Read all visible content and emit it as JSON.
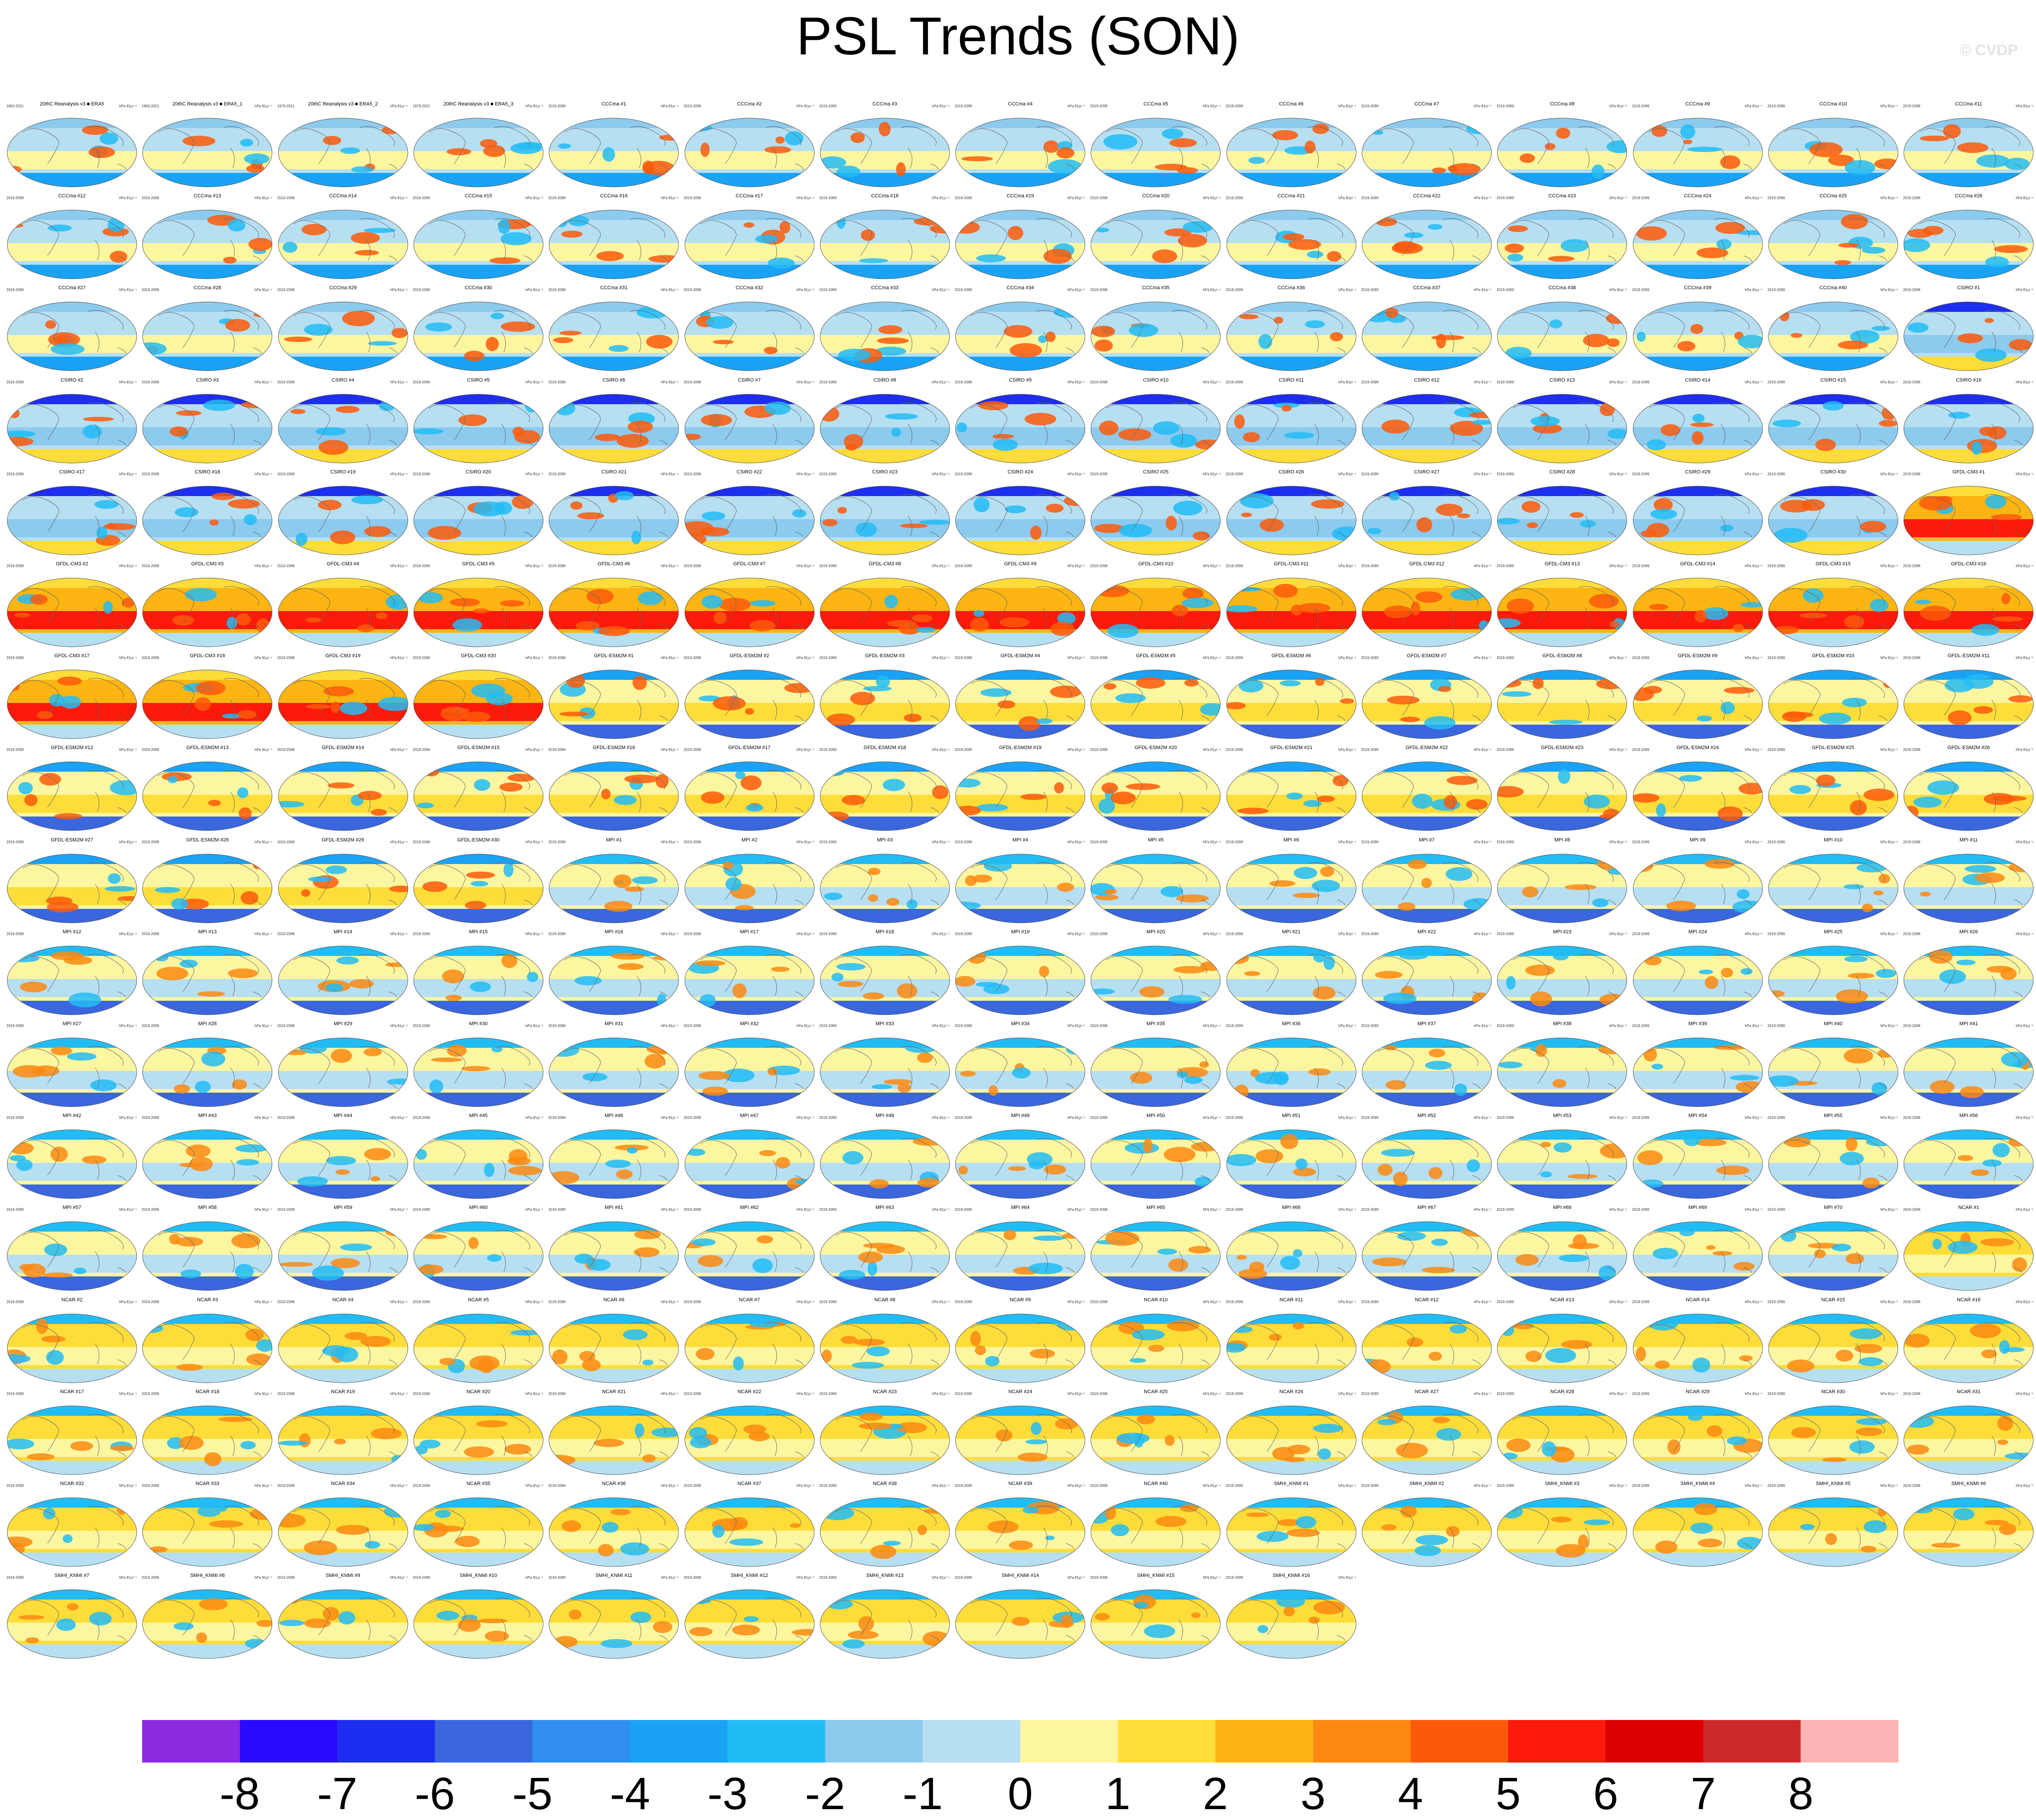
{
  "title": "PSL Trends (SON)",
  "credit": "© CVDP",
  "chart_data": {
    "type": "heatmap",
    "title": "PSL Trends (SON)",
    "panel_units": "hPa 81yr⁻¹",
    "panels": [
      {
        "name": "20thC Reanalysis v3 ■ ERA5",
        "years": "1850-2021"
      },
      {
        "name": "20thC Reanalysis v3 ■ ERA5_1",
        "years": "1850-2021"
      },
      {
        "name": "20thC Reanalysis v3 ■ ERA5_2",
        "years": "1979-2021"
      },
      {
        "name": "20thC Reanalysis v3 ■ ERA5_3",
        "years": "1979-2021"
      },
      {
        "name": "CCCma #1",
        "years": "2019-2099"
      },
      {
        "name": "CCCma #2",
        "years": "2019-2099"
      },
      {
        "name": "CCCma #3",
        "years": "2019-2099"
      },
      {
        "name": "CCCma #4",
        "years": "2019-2099"
      },
      {
        "name": "CCCma #5",
        "years": "2019-2099"
      },
      {
        "name": "CCCma #6",
        "years": "2019-2099"
      },
      {
        "name": "CCCma #7",
        "years": "2019-2099"
      },
      {
        "name": "CCCma #8",
        "years": "2019-2099"
      },
      {
        "name": "CCCma #9",
        "years": "2019-2099"
      },
      {
        "name": "CCCma #10",
        "years": "2019-2099"
      },
      {
        "name": "CCCma #11",
        "years": "2019-2099"
      },
      {
        "name": "CCCma #12",
        "years": "2019-2099"
      },
      {
        "name": "CCCma #13",
        "years": "2019-2099"
      },
      {
        "name": "CCCma #14",
        "years": "2019-2099"
      },
      {
        "name": "CCCma #15",
        "years": "2019-2099"
      },
      {
        "name": "CCCma #16",
        "years": "2019-2099"
      },
      {
        "name": "CCCma #17",
        "years": "2019-2099"
      },
      {
        "name": "CCCma #18",
        "years": "2019-2099"
      },
      {
        "name": "CCCma #19",
        "years": "2019-2099"
      },
      {
        "name": "CCCma #20",
        "years": "2019-2099"
      },
      {
        "name": "CCCma #21",
        "years": "2019-2099"
      },
      {
        "name": "CCCma #22",
        "years": "2019-2099"
      },
      {
        "name": "CCCma #23",
        "years": "2019-2099"
      },
      {
        "name": "CCCma #24",
        "years": "2019-2099"
      },
      {
        "name": "CCCma #25",
        "years": "2019-2099"
      },
      {
        "name": "CCCma #26",
        "years": "2019-2099"
      },
      {
        "name": "CCCma #27",
        "years": "2019-2099"
      },
      {
        "name": "CCCma #28",
        "years": "2019-2099"
      },
      {
        "name": "CCCma #29",
        "years": "2019-2099"
      },
      {
        "name": "CCCma #30",
        "years": "2019-2099"
      },
      {
        "name": "CCCma #31",
        "years": "2019-2099"
      },
      {
        "name": "CCCma #32",
        "years": "2019-2099"
      },
      {
        "name": "CCCma #33",
        "years": "2019-2099"
      },
      {
        "name": "CCCma #34",
        "years": "2019-2099"
      },
      {
        "name": "CCCma #35",
        "years": "2019-2099"
      },
      {
        "name": "CCCma #36",
        "years": "2019-2099"
      },
      {
        "name": "CCCma #37",
        "years": "2019-2099"
      },
      {
        "name": "CCCma #38",
        "years": "2019-2099"
      },
      {
        "name": "CCCma #39",
        "years": "2019-2099"
      },
      {
        "name": "CCCma #40",
        "years": "2019-2099"
      },
      {
        "name": "CSIRO #1",
        "years": "2019-2099"
      },
      {
        "name": "CSIRO #2",
        "years": "2019-2099"
      },
      {
        "name": "CSIRO #3",
        "years": "2019-2099"
      },
      {
        "name": "CSIRO #4",
        "years": "2019-2099"
      },
      {
        "name": "CSIRO #5",
        "years": "2019-2099"
      },
      {
        "name": "CSIRO #6",
        "years": "2019-2099"
      },
      {
        "name": "CSIRO #7",
        "years": "2019-2099"
      },
      {
        "name": "CSIRO #8",
        "years": "2019-2099"
      },
      {
        "name": "CSIRO #9",
        "years": "2019-2099"
      },
      {
        "name": "CSIRO #10",
        "years": "2019-2099"
      },
      {
        "name": "CSIRO #11",
        "years": "2019-2099"
      },
      {
        "name": "CSIRO #12",
        "years": "2019-2099"
      },
      {
        "name": "CSIRO #13",
        "years": "2019-2099"
      },
      {
        "name": "CSIRO #14",
        "years": "2019-2099"
      },
      {
        "name": "CSIRO #15",
        "years": "2019-2099"
      },
      {
        "name": "CSIRO #16",
        "years": "2019-2099"
      },
      {
        "name": "CSIRO #17",
        "years": "2019-2099"
      },
      {
        "name": "CSIRO #18",
        "years": "2019-2099"
      },
      {
        "name": "CSIRO #19",
        "years": "2019-2099"
      },
      {
        "name": "CSIRO #20",
        "years": "2019-2099"
      },
      {
        "name": "CSIRO #21",
        "years": "2019-2099"
      },
      {
        "name": "CSIRO #22",
        "years": "2019-2099"
      },
      {
        "name": "CSIRO #23",
        "years": "2019-2099"
      },
      {
        "name": "CSIRO #24",
        "years": "2019-2099"
      },
      {
        "name": "CSIRO #25",
        "years": "2019-2099"
      },
      {
        "name": "CSIRO #26",
        "years": "2019-2099"
      },
      {
        "name": "CSIRO #27",
        "years": "2019-2099"
      },
      {
        "name": "CSIRO #28",
        "years": "2019-2099"
      },
      {
        "name": "CSIRO #29",
        "years": "2019-2099"
      },
      {
        "name": "CSIRO #30",
        "years": "2019-2099"
      },
      {
        "name": "GFDL-CM3 #1",
        "years": "2019-2099"
      },
      {
        "name": "GFDL-CM3 #2",
        "years": "2019-2099"
      },
      {
        "name": "GFDL-CM3 #3",
        "years": "2019-2099"
      },
      {
        "name": "GFDL-CM3 #4",
        "years": "2019-2099"
      },
      {
        "name": "GFDL-CM3 #5",
        "years": "2019-2099"
      },
      {
        "name": "GFDL-CM3 #6",
        "years": "2019-2099"
      },
      {
        "name": "GFDL-CM3 #7",
        "years": "2019-2099"
      },
      {
        "name": "GFDL-CM3 #8",
        "years": "2019-2099"
      },
      {
        "name": "GFDL-CM3 #9",
        "years": "2019-2099"
      },
      {
        "name": "GFDL-CM3 #10",
        "years": "2019-2099"
      },
      {
        "name": "GFDL-CM3 #11",
        "years": "2019-2099"
      },
      {
        "name": "GFDL-CM3 #12",
        "years": "2019-2099"
      },
      {
        "name": "GFDL-CM3 #13",
        "years": "2019-2099"
      },
      {
        "name": "GFDL-CM3 #14",
        "years": "2019-2099"
      },
      {
        "name": "GFDL-CM3 #15",
        "years": "2019-2099"
      },
      {
        "name": "GFDL-CM3 #16",
        "years": "2019-2099"
      },
      {
        "name": "GFDL-CM3 #17",
        "years": "2019-2099"
      },
      {
        "name": "GFDL-CM3 #18",
        "years": "2019-2099"
      },
      {
        "name": "GFDL-CM3 #19",
        "years": "2019-2099"
      },
      {
        "name": "GFDL-CM3 #20",
        "years": "2019-2099"
      },
      {
        "name": "GFDL-ESM2M #1",
        "years": "2019-2099"
      },
      {
        "name": "GFDL-ESM2M #2",
        "years": "2019-2099"
      },
      {
        "name": "GFDL-ESM2M #3",
        "years": "2019-2099"
      },
      {
        "name": "GFDL-ESM2M #4",
        "years": "2019-2099"
      },
      {
        "name": "GFDL-ESM2M #5",
        "years": "2019-2099"
      },
      {
        "name": "GFDL-ESM2M #6",
        "years": "2019-2099"
      },
      {
        "name": "GFDL-ESM2M #7",
        "years": "2019-2099"
      },
      {
        "name": "GFDL-ESM2M #8",
        "years": "2019-2099"
      },
      {
        "name": "GFDL-ESM2M #9",
        "years": "2019-2099"
      },
      {
        "name": "GFDL-ESM2M #10",
        "years": "2019-2099"
      },
      {
        "name": "GFDL-ESM2M #11",
        "years": "2019-2099"
      },
      {
        "name": "GFDL-ESM2M #12",
        "years": "2019-2099"
      },
      {
        "name": "GFDL-ESM2M #13",
        "years": "2019-2099"
      },
      {
        "name": "GFDL-ESM2M #14",
        "years": "2019-2099"
      },
      {
        "name": "GFDL-ESM2M #15",
        "years": "2019-2099"
      },
      {
        "name": "GFDL-ESM2M #16",
        "years": "2019-2099"
      },
      {
        "name": "GFDL-ESM2M #17",
        "years": "2019-2099"
      },
      {
        "name": "GFDL-ESM2M #18",
        "years": "2019-2099"
      },
      {
        "name": "GFDL-ESM2M #19",
        "years": "2019-2099"
      },
      {
        "name": "GFDL-ESM2M #20",
        "years": "2019-2099"
      },
      {
        "name": "GFDL-ESM2M #21",
        "years": "2019-2099"
      },
      {
        "name": "GFDL-ESM2M #22",
        "years": "2019-2099"
      },
      {
        "name": "GFDL-ESM2M #23",
        "years": "2019-2099"
      },
      {
        "name": "GFDL-ESM2M #24",
        "years": "2019-2099"
      },
      {
        "name": "GFDL-ESM2M #25",
        "years": "2019-2099"
      },
      {
        "name": "GFDL-ESM2M #26",
        "years": "2019-2099"
      },
      {
        "name": "GFDL-ESM2M #27",
        "years": "2019-2099"
      },
      {
        "name": "GFDL-ESM2M #28",
        "years": "2019-2099"
      },
      {
        "name": "GFDL-ESM2M #29",
        "years": "2019-2099"
      },
      {
        "name": "GFDL-ESM2M #30",
        "years": "2019-2099"
      },
      {
        "name": "MPI #1",
        "years": "2019-2099"
      },
      {
        "name": "MPI #2",
        "years": "2019-2099"
      },
      {
        "name": "MPI #3",
        "years": "2019-2099"
      },
      {
        "name": "MPI #4",
        "years": "2019-2099"
      },
      {
        "name": "MPI #5",
        "years": "2019-2099"
      },
      {
        "name": "MPI #6",
        "years": "2019-2099"
      },
      {
        "name": "MPI #7",
        "years": "2019-2099"
      },
      {
        "name": "MPI #8",
        "years": "2019-2099"
      },
      {
        "name": "MPI #9",
        "years": "2019-2099"
      },
      {
        "name": "MPI #10",
        "years": "2019-2099"
      },
      {
        "name": "MPI #11",
        "years": "2019-2099"
      },
      {
        "name": "MPI #12",
        "years": "2019-2099"
      },
      {
        "name": "MPI #13",
        "years": "2019-2099"
      },
      {
        "name": "MPI #14",
        "years": "2019-2099"
      },
      {
        "name": "MPI #15",
        "years": "2019-2099"
      },
      {
        "name": "MPI #16",
        "years": "2019-2099"
      },
      {
        "name": "MPI #17",
        "years": "2019-2099"
      },
      {
        "name": "MPI #18",
        "years": "2019-2099"
      },
      {
        "name": "MPI #19",
        "years": "2019-2099"
      },
      {
        "name": "MPI #20",
        "years": "2019-2099"
      },
      {
        "name": "MPI #21",
        "years": "2019-2099"
      },
      {
        "name": "MPI #22",
        "years": "2019-2099"
      },
      {
        "name": "MPI #23",
        "years": "2019-2099"
      },
      {
        "name": "MPI #24",
        "years": "2019-2099"
      },
      {
        "name": "MPI #25",
        "years": "2019-2099"
      },
      {
        "name": "MPI #26",
        "years": "2019-2099"
      },
      {
        "name": "MPI #27",
        "years": "2019-2099"
      },
      {
        "name": "MPI #28",
        "years": "2019-2099"
      },
      {
        "name": "MPI #29",
        "years": "2019-2099"
      },
      {
        "name": "MPI #30",
        "years": "2019-2099"
      },
      {
        "name": "MPI #31",
        "years": "2019-2099"
      },
      {
        "name": "MPI #32",
        "years": "2019-2099"
      },
      {
        "name": "MPI #33",
        "years": "2019-2099"
      },
      {
        "name": "MPI #34",
        "years": "2019-2099"
      },
      {
        "name": "MPI #35",
        "years": "2019-2099"
      },
      {
        "name": "MPI #36",
        "years": "2019-2099"
      },
      {
        "name": "MPI #37",
        "years": "2019-2099"
      },
      {
        "name": "MPI #38",
        "years": "2019-2099"
      },
      {
        "name": "MPI #39",
        "years": "2019-2099"
      },
      {
        "name": "MPI #40",
        "years": "2019-2099"
      },
      {
        "name": "MPI #41",
        "years": "2019-2099"
      },
      {
        "name": "MPI #42",
        "years": "2019-2099"
      },
      {
        "name": "MPI #43",
        "years": "2019-2099"
      },
      {
        "name": "MPI #44",
        "years": "2019-2099"
      },
      {
        "name": "MPI #45",
        "years": "2019-2099"
      },
      {
        "name": "MPI #46",
        "years": "2019-2099"
      },
      {
        "name": "MPI #47",
        "years": "2019-2099"
      },
      {
        "name": "MPI #48",
        "years": "2019-2099"
      },
      {
        "name": "MPI #49",
        "years": "2019-2099"
      },
      {
        "name": "MPI #50",
        "years": "2019-2099"
      },
      {
        "name": "MPI #51",
        "years": "2019-2099"
      },
      {
        "name": "MPI #52",
        "years": "2019-2099"
      },
      {
        "name": "MPI #53",
        "years": "2019-2099"
      },
      {
        "name": "MPI #54",
        "years": "2019-2099"
      },
      {
        "name": "MPI #55",
        "years": "2019-2099"
      },
      {
        "name": "MPI #56",
        "years": "2019-2099"
      },
      {
        "name": "MPI #57",
        "years": "2019-2099"
      },
      {
        "name": "MPI #58",
        "years": "2019-2099"
      },
      {
        "name": "MPI #59",
        "years": "2019-2099"
      },
      {
        "name": "MPI #60",
        "years": "2019-2099"
      },
      {
        "name": "MPI #61",
        "years": "2019-2099"
      },
      {
        "name": "MPI #62",
        "years": "2019-2099"
      },
      {
        "name": "MPI #63",
        "years": "2019-2099"
      },
      {
        "name": "MPI #64",
        "years": "2019-2099"
      },
      {
        "name": "MPI #65",
        "years": "2019-2099"
      },
      {
        "name": "MPI #66",
        "years": "2019-2099"
      },
      {
        "name": "MPI #67",
        "years": "2019-2099"
      },
      {
        "name": "MPI #68",
        "years": "2019-2099"
      },
      {
        "name": "MPI #69",
        "years": "2019-2099"
      },
      {
        "name": "MPI #70",
        "years": "2019-2099"
      },
      {
        "name": "NCAR #1",
        "years": "2019-2099"
      },
      {
        "name": "NCAR #2",
        "years": "2019-2099"
      },
      {
        "name": "NCAR #3",
        "years": "2019-2099"
      },
      {
        "name": "NCAR #4",
        "years": "2019-2099"
      },
      {
        "name": "NCAR #5",
        "years": "2019-2099"
      },
      {
        "name": "NCAR #6",
        "years": "2019-2099"
      },
      {
        "name": "NCAR #7",
        "years": "2019-2099"
      },
      {
        "name": "NCAR #8",
        "years": "2019-2099"
      },
      {
        "name": "NCAR #9",
        "years": "2019-2099"
      },
      {
        "name": "NCAR #10",
        "years": "2019-2099"
      },
      {
        "name": "NCAR #11",
        "years": "2019-2099"
      },
      {
        "name": "NCAR #12",
        "years": "2019-2099"
      },
      {
        "name": "NCAR #13",
        "years": "2019-2099"
      },
      {
        "name": "NCAR #14",
        "years": "2019-2099"
      },
      {
        "name": "NCAR #15",
        "years": "2019-2099"
      },
      {
        "name": "NCAR #16",
        "years": "2019-2099"
      },
      {
        "name": "NCAR #17",
        "years": "2019-2099"
      },
      {
        "name": "NCAR #18",
        "years": "2019-2099"
      },
      {
        "name": "NCAR #19",
        "years": "2019-2099"
      },
      {
        "name": "NCAR #20",
        "years": "2019-2099"
      },
      {
        "name": "NCAR #21",
        "years": "2019-2099"
      },
      {
        "name": "NCAR #22",
        "years": "2019-2099"
      },
      {
        "name": "NCAR #23",
        "years": "2019-2099"
      },
      {
        "name": "NCAR #24",
        "years": "2019-2099"
      },
      {
        "name": "NCAR #25",
        "years": "2019-2099"
      },
      {
        "name": "NCAR #26",
        "years": "2019-2099"
      },
      {
        "name": "NCAR #27",
        "years": "2019-2099"
      },
      {
        "name": "NCAR #28",
        "years": "2019-2099"
      },
      {
        "name": "NCAR #29",
        "years": "2019-2099"
      },
      {
        "name": "NCAR #30",
        "years": "2019-2099"
      },
      {
        "name": "NCAR #31",
        "years": "2019-2099"
      },
      {
        "name": "NCAR #32",
        "years": "2019-2099"
      },
      {
        "name": "NCAR #33",
        "years": "2019-2099"
      },
      {
        "name": "NCAR #34",
        "years": "2019-2099"
      },
      {
        "name": "NCAR #35",
        "years": "2019-2099"
      },
      {
        "name": "NCAR #36",
        "years": "2019-2099"
      },
      {
        "name": "NCAR #37",
        "years": "2019-2099"
      },
      {
        "name": "NCAR #38",
        "years": "2019-2099"
      },
      {
        "name": "NCAR #39",
        "years": "2019-2099"
      },
      {
        "name": "NCAR #40",
        "years": "2019-2099"
      },
      {
        "name": "SMHI_KNMI #1",
        "years": "2019-2099"
      },
      {
        "name": "SMHI_KNMI #2",
        "years": "2019-2099"
      },
      {
        "name": "SMHI_KNMI #3",
        "years": "2019-2099"
      },
      {
        "name": "SMHI_KNMI #4",
        "years": "2019-2099"
      },
      {
        "name": "SMHI_KNMI #5",
        "years": "2019-2099"
      },
      {
        "name": "SMHI_KNMI #6",
        "years": "2019-2099"
      },
      {
        "name": "SMHI_KNMI #7",
        "years": "2019-2099"
      },
      {
        "name": "SMHI_KNMI #8",
        "years": "2019-2099"
      },
      {
        "name": "SMHI_KNMI #9",
        "years": "2019-2099"
      },
      {
        "name": "SMHI_KNMI #10",
        "years": "2019-2099"
      },
      {
        "name": "SMHI_KNMI #11",
        "years": "2019-2099"
      },
      {
        "name": "SMHI_KNMI #12",
        "years": "2019-2099"
      },
      {
        "name": "SMHI_KNMI #13",
        "years": "2019-2099"
      },
      {
        "name": "SMHI_KNMI #14",
        "years": "2019-2099"
      },
      {
        "name": "SMHI_KNMI #15",
        "years": "2019-2099"
      },
      {
        "name": "SMHI_KNMI #16",
        "years": "2019-2099"
      }
    ],
    "colorbar": {
      "levels": [
        -8,
        -7,
        -6,
        -5,
        -4,
        -3,
        -2,
        -1,
        0,
        1,
        2,
        3,
        4,
        5,
        6,
        7,
        8
      ],
      "tick_labels": [
        "-8",
        "-7",
        "-6",
        "-5",
        "-4",
        "-3",
        "-2",
        "-1",
        "0",
        "1",
        "2",
        "3",
        "4",
        "5",
        "6",
        "7",
        "8"
      ],
      "colors": [
        "#8a2be2",
        "#2a0aff",
        "#1e2ef0",
        "#3a66de",
        "#2f8ef0",
        "#1aa2f5",
        "#22bcf4",
        "#8ccaee",
        "#b6dff2",
        "#fdf6a0",
        "#fedd3a",
        "#fcb512",
        "#fc8a12",
        "#fc5a0a",
        "#fc1a0a",
        "#dd0000",
        "#cc2a2a",
        "#fcb4b4"
      ]
    }
  }
}
